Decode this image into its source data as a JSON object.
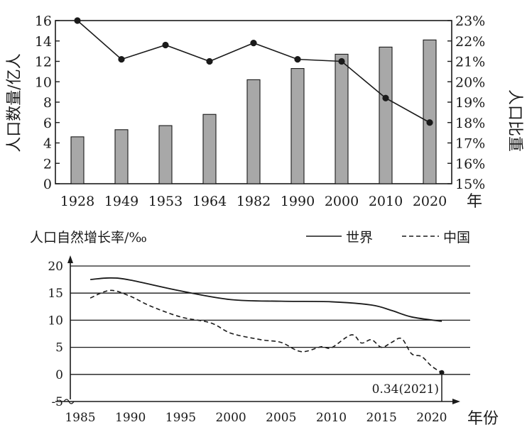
{
  "chart_data": [
    {
      "type": "bar",
      "categories": [
        "1928",
        "1949",
        "1953",
        "1964",
        "1982",
        "1990",
        "2000",
        "2010",
        "2020"
      ],
      "xlabel": "年",
      "ylabel": "人口数量/亿人",
      "y2label": "人口比重",
      "ylim": [
        0,
        16
      ],
      "y2lim": [
        15,
        23
      ],
      "yticks": [
        "0",
        "2",
        "4",
        "6",
        "8",
        "10",
        "12",
        "14",
        "16"
      ],
      "y2ticks": [
        "15%",
        "16%",
        "17%",
        "18%",
        "19%",
        "20%",
        "21%",
        "22%",
        "23%"
      ],
      "series": [
        {
          "kind": "bar",
          "axis": "left",
          "values": [
            4.6,
            5.3,
            5.7,
            6.8,
            10.2,
            11.3,
            12.7,
            13.4,
            14.1
          ]
        },
        {
          "kind": "line-markers",
          "axis": "right",
          "values": [
            23.0,
            21.1,
            21.8,
            21.0,
            21.9,
            21.1,
            21.0,
            19.2,
            18.0
          ]
        }
      ],
      "colors": {
        "bar_fill": "#a8a8a8",
        "ink": "#1a1a1a"
      }
    },
    {
      "type": "line",
      "ylabel": "人口自然增长率/‰",
      "xlabel": "年份",
      "ylim": [
        -5,
        20
      ],
      "xlim": [
        1985,
        2021
      ],
      "yticks": [
        "-5",
        "0",
        "5",
        "10",
        "15",
        "20"
      ],
      "xticks": [
        "1985",
        "1990",
        "1995",
        "2000",
        "2005",
        "2010",
        "2015",
        "2020"
      ],
      "gridlines": "horizontal",
      "legend_position": "top-right",
      "series": [
        {
          "name": "世界",
          "style": "solid",
          "x": [
            1986,
            1988,
            1990,
            1995,
            2000,
            2005,
            2010,
            2014,
            2016,
            2018,
            2021
          ],
          "y": [
            17.5,
            17.8,
            17.4,
            15.4,
            13.8,
            13.5,
            13.4,
            12.8,
            11.8,
            10.6,
            9.8
          ]
        },
        {
          "name": "中国",
          "style": "dashed",
          "x": [
            1986,
            1988,
            1990,
            1992,
            1995,
            1998,
            2000,
            2003,
            2005,
            2007,
            2009,
            2010,
            2012,
            2013,
            2014,
            2015,
            2016,
            2017,
            2018,
            2019,
            2020,
            2021
          ],
          "y": [
            14.1,
            15.5,
            14.4,
            12.6,
            10.6,
            9.5,
            7.6,
            6.4,
            5.9,
            4.2,
            5.1,
            4.9,
            7.3,
            5.8,
            6.4,
            5.0,
            5.9,
            6.6,
            3.8,
            3.3,
            1.5,
            0.34
          ]
        }
      ],
      "annotation": "0.34(2021)"
    }
  ]
}
